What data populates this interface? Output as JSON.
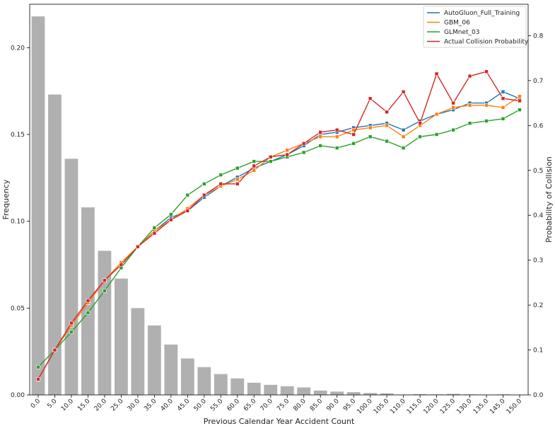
{
  "chart_data": {
    "type": "bar+line",
    "xlabel": "Previous Calendar Year Accident Count",
    "ylabel_left": "Frequency",
    "ylabel_right": "Probability of Collision",
    "categories": [
      "0.0",
      "5.0",
      "10.0",
      "15.0",
      "20.0",
      "25.0",
      "30.0",
      "35.0",
      "40.0",
      "45.0",
      "50.0",
      "55.0",
      "60.0",
      "65.0",
      "70.0",
      "75.0",
      "80.0",
      "85.0",
      "90.0",
      "95.0",
      "100.0",
      "105.0",
      "110.0",
      "115.0",
      "120.0",
      "125.0",
      "130.0",
      "135.0",
      "145.0",
      "150.0"
    ],
    "ylim_left": [
      0,
      0.225
    ],
    "yticks_left": [
      0.0,
      0.05,
      0.1,
      0.15,
      0.2
    ],
    "yticks_left_labels": [
      "0.00",
      "0.05",
      "0.10",
      "0.15",
      "0.20"
    ],
    "ylim_right": [
      0,
      0.87
    ],
    "yticks_right": [
      0.0,
      0.1,
      0.2,
      0.3,
      0.4,
      0.5,
      0.6,
      0.7,
      0.8
    ],
    "yticks_right_labels": [
      "0.0",
      "0.1",
      "0.2",
      "0.3",
      "0.4",
      "0.5",
      "0.6",
      "0.7",
      "0.8"
    ],
    "bar_series": {
      "color": "#b0b0b0",
      "axis": "left",
      "values": [
        0.218,
        0.173,
        0.136,
        0.108,
        0.083,
        0.067,
        0.05,
        0.04,
        0.029,
        0.021,
        0.016,
        0.012,
        0.0095,
        0.007,
        0.0058,
        0.005,
        0.0043,
        0.0025,
        0.0019,
        0.0016,
        0.0011,
        0.0009,
        0.0002,
        0.0004,
        0.0003,
        0.0006,
        0.0003,
        0.0002,
        0.0003,
        0.0001
      ]
    },
    "series": [
      {
        "name": "AutoGluon_Full_Training",
        "color": "#1f77b4",
        "axis": "right",
        "values": [
          0.035,
          0.1,
          0.155,
          0.205,
          0.255,
          0.29,
          0.33,
          0.365,
          0.395,
          0.41,
          0.44,
          0.465,
          0.485,
          0.505,
          0.52,
          0.535,
          0.555,
          0.58,
          0.585,
          0.595,
          0.6,
          0.605,
          0.59,
          0.61,
          0.625,
          0.635,
          0.65,
          0.65,
          0.675,
          0.66
        ]
      },
      {
        "name": "GBM_06",
        "color": "#ff7f0e",
        "axis": "right",
        "values": [
          0.035,
          0.1,
          0.155,
          0.205,
          0.255,
          0.295,
          0.33,
          0.365,
          0.39,
          0.415,
          0.445,
          0.465,
          0.48,
          0.5,
          0.53,
          0.545,
          0.56,
          0.575,
          0.575,
          0.59,
          0.595,
          0.6,
          0.575,
          0.6,
          0.625,
          0.64,
          0.645,
          0.645,
          0.64,
          0.665
        ]
      },
      {
        "name": "GLMnet_03",
        "color": "#2ca02c",
        "axis": "right",
        "values": [
          0.062,
          0.1,
          0.14,
          0.183,
          0.232,
          0.283,
          0.33,
          0.372,
          0.402,
          0.445,
          0.47,
          0.49,
          0.505,
          0.52,
          0.52,
          0.53,
          0.54,
          0.555,
          0.55,
          0.56,
          0.575,
          0.565,
          0.55,
          0.575,
          0.58,
          0.59,
          0.605,
          0.61,
          0.615,
          0.635
        ]
      },
      {
        "name": "Actual Collision Probability",
        "color": "#d62728",
        "axis": "right",
        "values": [
          0.035,
          0.1,
          0.16,
          0.21,
          0.255,
          0.29,
          0.33,
          0.36,
          0.39,
          0.41,
          0.445,
          0.47,
          0.47,
          0.51,
          0.53,
          0.535,
          0.56,
          0.585,
          0.59,
          0.58,
          0.66,
          0.63,
          0.675,
          0.605,
          0.715,
          0.65,
          0.71,
          0.72,
          0.66,
          0.655
        ]
      }
    ],
    "legend_position": "top-right",
    "grid": false
  }
}
